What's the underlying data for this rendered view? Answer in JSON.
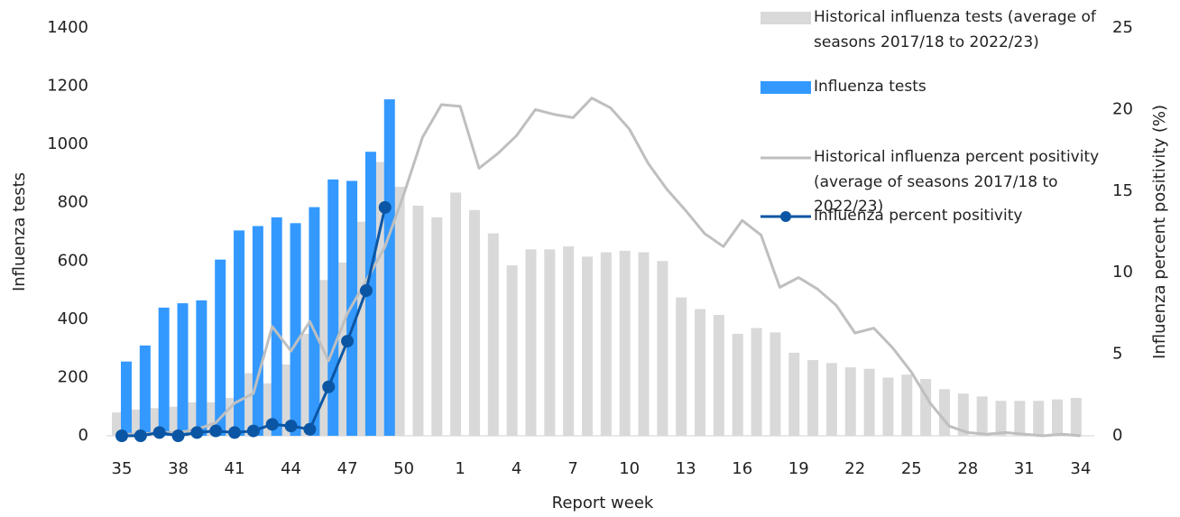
{
  "chart_data": {
    "type": "bar",
    "xlabel": "Report week",
    "ylabel": "Influenza tests",
    "y2label": "Influenza percent positivity (%)",
    "categories": [
      "35",
      null,
      null,
      "38",
      null,
      null,
      "41",
      null,
      null,
      "44",
      null,
      null,
      "47",
      null,
      null,
      "50",
      null,
      null,
      "1",
      null,
      null,
      "4",
      null,
      null,
      "7",
      null,
      null,
      "10",
      null,
      null,
      "13",
      null,
      null,
      "16",
      null,
      null,
      "19",
      null,
      null,
      "22",
      null,
      null,
      "25",
      null,
      null,
      "28",
      null,
      null,
      "31",
      null,
      null,
      "34"
    ],
    "ylim": [
      0,
      1400
    ],
    "yticks": [
      0,
      200,
      400,
      600,
      800,
      1000,
      1200,
      1400
    ],
    "y2lim": [
      0,
      25
    ],
    "y2ticks": [
      0,
      5,
      10,
      15,
      20,
      25
    ],
    "series": [
      {
        "name": "Historical influenza tests (average of seasons 2017/18 to 2022/23)",
        "type": "bar",
        "color": "#d9d9d9",
        "values": [
          80,
          90,
          95,
          100,
          115,
          115,
          130,
          215,
          180,
          245,
          350,
          535,
          595,
          735,
          940,
          855,
          790,
          750,
          835,
          775,
          695,
          585,
          640,
          640,
          650,
          615,
          630,
          635,
          630,
          600,
          475,
          435,
          415,
          350,
          370,
          355,
          285,
          260,
          250,
          235,
          230,
          200,
          210,
          195,
          160,
          145,
          135,
          120,
          120,
          120,
          125,
          130
        ]
      },
      {
        "name": "Influenza tests",
        "type": "bar",
        "color": "#3399ff",
        "values": [
          255,
          310,
          440,
          455,
          465,
          605,
          705,
          720,
          750,
          730,
          785,
          880,
          875,
          975,
          1155,
          null,
          null,
          null,
          null,
          null,
          null,
          null,
          null,
          null,
          null,
          null,
          null,
          null,
          null,
          null,
          null,
          null,
          null,
          null,
          null,
          null,
          null,
          null,
          null,
          null,
          null,
          null,
          null,
          null,
          null,
          null,
          null,
          null,
          null,
          null,
          null,
          null
        ]
      },
      {
        "name": "Historical influenza percent positivity (average of seasons 2017/18 to 2022/23)",
        "type": "line",
        "axis": "y2",
        "color": "#bfbfbf",
        "values": [
          0.1,
          0.1,
          0.2,
          0.2,
          0.4,
          0.8,
          2.0,
          2.6,
          6.7,
          5.2,
          7.0,
          4.6,
          7.5,
          9.5,
          11.6,
          14.8,
          18.3,
          20.3,
          20.2,
          16.4,
          17.3,
          18.4,
          20.0,
          19.7,
          19.5,
          20.7,
          20.1,
          18.8,
          16.7,
          15.1,
          13.8,
          12.4,
          11.6,
          13.2,
          12.3,
          9.1,
          9.7,
          9.0,
          8.0,
          6.3,
          6.6,
          5.4,
          3.9,
          2.0,
          0.6,
          0.2,
          0.1,
          0.2,
          0.1,
          0.0,
          0.1,
          0.0
        ]
      },
      {
        "name": "Influenza percent positivity",
        "type": "line",
        "axis": "y2",
        "color": "#0b56a4",
        "markers": true,
        "values": [
          0.0,
          0.0,
          0.2,
          0.0,
          0.2,
          0.3,
          0.2,
          0.3,
          0.7,
          0.6,
          0.4,
          3.0,
          5.8,
          8.9,
          14.0,
          null,
          null,
          null,
          null,
          null,
          null,
          null,
          null,
          null,
          null,
          null,
          null,
          null,
          null,
          null,
          null,
          null,
          null,
          null,
          null,
          null,
          null,
          null,
          null,
          null,
          null,
          null,
          null,
          null,
          null,
          null,
          null,
          null,
          null,
          null,
          null,
          null
        ]
      }
    ]
  }
}
